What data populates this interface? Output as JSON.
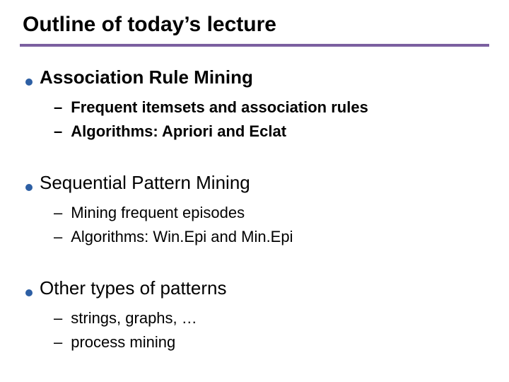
{
  "title": "Outline of today’s lecture",
  "colors": {
    "rule": "#7b5fa0",
    "bullet": "#2d5fa4",
    "text": "#000000",
    "bg": "#ffffff"
  },
  "sections": [
    {
      "heading": "Association Rule Mining",
      "heading_bold": true,
      "subs_bold": true,
      "subs": [
        "Frequent itemsets and association rules",
        "Algorithms: Apriori and Eclat"
      ]
    },
    {
      "heading": "Sequential Pattern Mining",
      "heading_bold": false,
      "subs_bold": false,
      "subs": [
        "Mining frequent episodes",
        "Algorithms: Win.Epi and Min.Epi"
      ]
    },
    {
      "heading": "Other types of patterns",
      "heading_bold": false,
      "subs_bold": false,
      "subs": [
        "strings, graphs, …",
        "process mining"
      ]
    }
  ]
}
